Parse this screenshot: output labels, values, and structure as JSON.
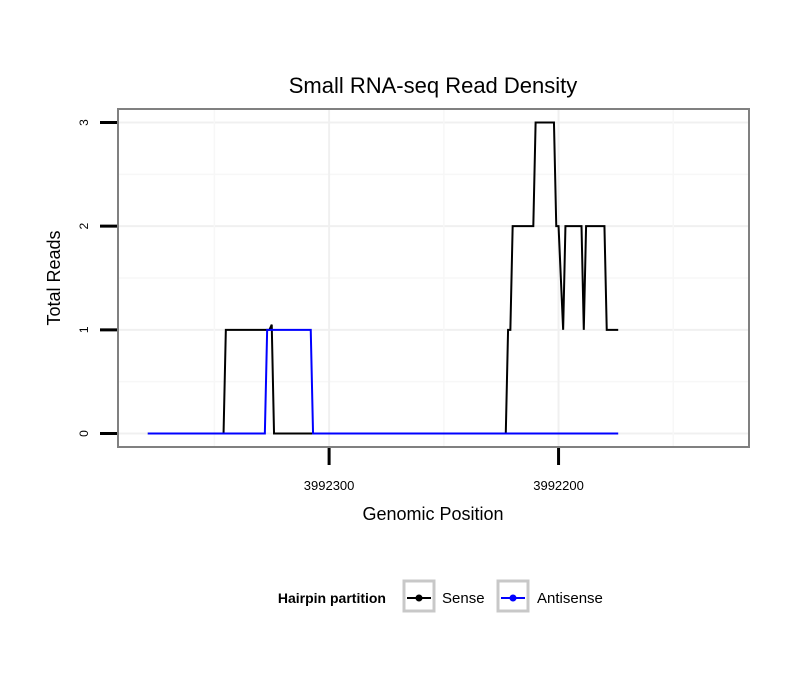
{
  "chart_data": {
    "type": "line",
    "title": "Small RNA-seq Read Density",
    "xlabel": "Genomic Position",
    "ylabel": "Total Reads",
    "xlim": [
      3992392,
      3992117
    ],
    "ylim": [
      -0.13,
      3.13
    ],
    "x_ticks": [
      3992300,
      3992200
    ],
    "x_tick_labels": [
      "3992300",
      "3992200"
    ],
    "y_ticks": [
      0,
      1,
      2,
      3
    ],
    "y_tick_labels": [
      "0",
      "1",
      "2",
      "3"
    ],
    "legend": {
      "title": "Hairpin partition",
      "position": "bottom",
      "entries": [
        "Sense",
        "Antisense"
      ]
    },
    "colors": {
      "Sense": "#000000",
      "Antisense": "#0000ff"
    },
    "series": [
      {
        "name": "Sense",
        "points": [
          [
            3992379,
            0
          ],
          [
            3992346,
            0
          ],
          [
            3992345,
            1
          ],
          [
            3992326,
            1
          ],
          [
            3992325,
            1.05
          ],
          [
            3992324,
            0
          ],
          [
            3992223,
            0
          ],
          [
            3992222,
            1
          ],
          [
            3992221,
            1
          ],
          [
            3992220,
            2
          ],
          [
            3992211,
            2
          ],
          [
            3992210,
            3
          ],
          [
            3992202,
            3
          ],
          [
            3992201,
            2
          ],
          [
            3992200,
            2
          ],
          [
            3992198,
            1
          ],
          [
            3992197,
            2
          ],
          [
            3992190,
            2
          ],
          [
            3992189,
            1
          ],
          [
            3992188,
            2
          ],
          [
            3992180,
            2
          ],
          [
            3992179,
            1
          ],
          [
            3992174,
            1
          ]
        ]
      },
      {
        "name": "Antisense",
        "points": [
          [
            3992379,
            0
          ],
          [
            3992328,
            0
          ],
          [
            3992327,
            1
          ],
          [
            3992308,
            1
          ],
          [
            3992307,
            0
          ],
          [
            3992174,
            0
          ]
        ]
      }
    ]
  }
}
